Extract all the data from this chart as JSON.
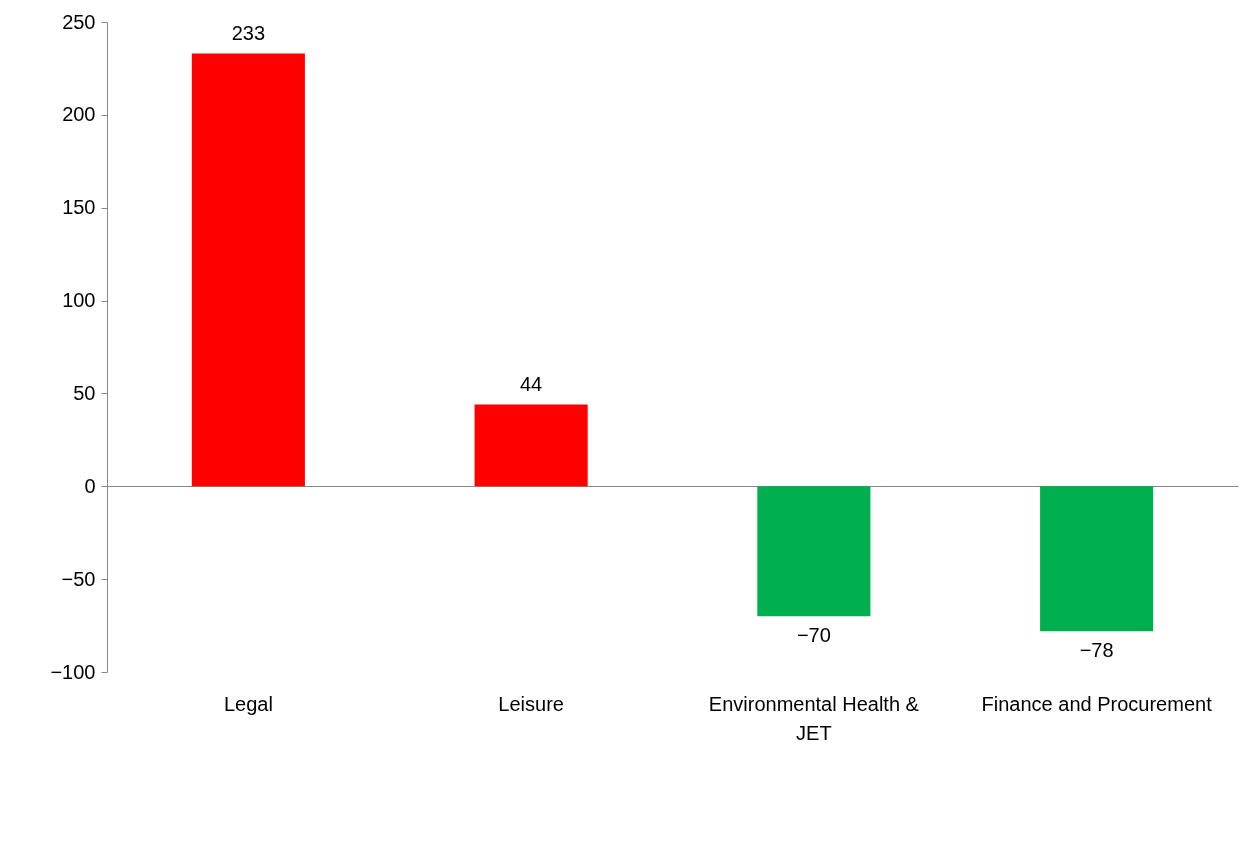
{
  "chart_data": {
    "type": "bar",
    "categories": [
      "Legal",
      "Leisure",
      "Environmental Health & JET",
      "Finance and Procurement"
    ],
    "values": [
      233,
      44,
      -70,
      -78
    ],
    "colors": [
      "#ff0000",
      "#ff0000",
      "#00b050",
      "#00b050"
    ],
    "ylim": [
      -100,
      250
    ],
    "yticks": [
      -100,
      -50,
      0,
      50,
      100,
      150,
      200,
      250
    ],
    "data_labels": true
  }
}
